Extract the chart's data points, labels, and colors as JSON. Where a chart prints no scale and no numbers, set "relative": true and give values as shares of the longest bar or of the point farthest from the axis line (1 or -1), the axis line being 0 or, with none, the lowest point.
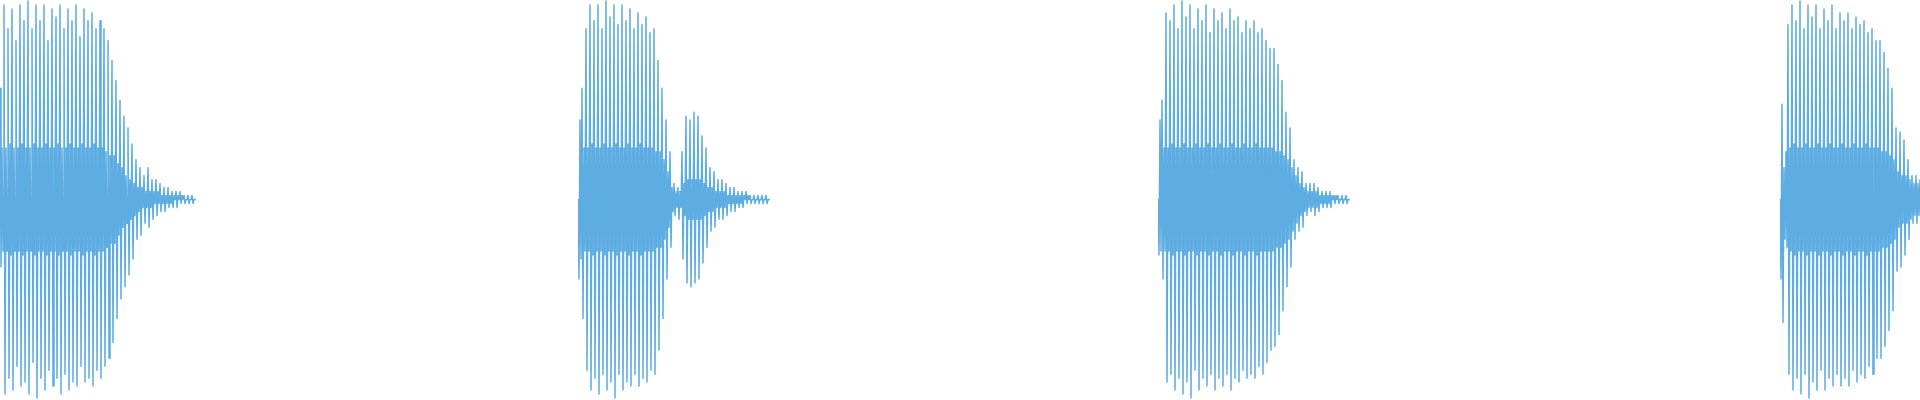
{
  "chart_data": [
    {
      "type": "line",
      "relative": true,
      "color": "#5dade2",
      "categories": [
        null,
        null,
        null,
        null,
        null,
        null,
        null,
        null,
        null,
        null,
        null,
        null,
        null,
        null,
        null,
        null,
        null,
        null,
        null,
        null,
        null,
        null,
        null,
        null,
        null,
        null,
        null,
        null,
        null,
        null,
        null,
        null,
        null,
        null,
        null,
        null,
        null,
        null,
        null,
        null,
        null,
        null,
        null,
        null,
        null,
        null,
        null,
        null,
        null,
        null,
        null,
        null,
        null,
        null,
        null,
        null,
        null,
        null,
        null,
        null,
        null,
        null,
        null,
        null,
        null,
        null,
        null,
        null,
        null,
        null,
        null,
        null,
        null,
        null,
        null,
        null,
        null,
        null,
        null,
        null,
        null,
        null,
        null,
        null,
        null,
        null,
        null,
        null,
        null,
        null,
        null,
        null,
        null,
        null,
        null,
        null,
        null,
        null,
        null,
        null,
        null,
        null,
        null,
        null,
        null,
        null,
        null,
        null,
        null,
        null,
        null,
        null,
        null,
        null,
        null,
        null,
        null,
        null,
        null,
        null,
        null,
        null,
        null,
        null,
        null,
        null,
        null,
        null,
        null,
        null,
        null,
        null,
        null,
        null,
        null,
        null,
        null,
        null,
        null,
        null,
        null,
        null,
        null,
        null,
        null,
        null,
        null,
        null,
        null,
        null,
        null,
        null,
        null,
        null,
        null,
        null,
        null,
        null,
        null,
        null,
        null,
        null,
        null,
        null,
        null,
        null,
        null,
        null,
        null,
        null,
        null,
        null,
        null,
        null,
        null,
        null,
        null,
        null,
        null,
        null,
        null,
        null,
        null,
        null,
        null,
        null,
        null,
        null,
        null,
        null,
        null,
        null,
        null,
        null,
        null,
        null,
        null
      ],
      "values": [
        0.78,
        0.33,
        0.63,
        0.37,
        0.99,
        0.01,
        0.63,
        0.37,
        0.93,
        0.05,
        0.64,
        0.36,
        0.98,
        0.02,
        0.63,
        0.37,
        0.9,
        0.08,
        0.63,
        0.37,
        0.99,
        0.03,
        0.64,
        0.36,
        0.95,
        0.04,
        0.63,
        0.37,
        1,
        0.01,
        0.63,
        0.37,
        0.93,
        0.09,
        0.64,
        0.36,
        0.99,
        0,
        0.63,
        0.37,
        0.95,
        0.05,
        0.63,
        0.37,
        0.99,
        0.02,
        0.64,
        0.36,
        0.9,
        0.07,
        0.63,
        0.37,
        0.98,
        0.03,
        0.63,
        0.37,
        0.96,
        0.05,
        0.64,
        0.36,
        0.99,
        0.01,
        0.63,
        0.37,
        0.93,
        0.06,
        0.63,
        0.37,
        0.98,
        0.02,
        0.64,
        0.36,
        0.95,
        0.04,
        0.63,
        0.37,
        0.99,
        0.03,
        0.63,
        0.37,
        0.91,
        0.08,
        0.64,
        0.36,
        0.98,
        0.04,
        0.63,
        0.37,
        0.95,
        0.05,
        0.63,
        0.37,
        0.97,
        0.03,
        0.64,
        0.36,
        0.93,
        0.07,
        0.63,
        0.37,
        0.95,
        0.05,
        0.63,
        0.37,
        0.93,
        0.08,
        0.62,
        0.38,
        0.9,
        0.1,
        0.61,
        0.39,
        0.85,
        0.14,
        0.61,
        0.39,
        0.8,
        0.2,
        0.59,
        0.41,
        0.75,
        0.25,
        0.58,
        0.43,
        0.71,
        0.28,
        0.56,
        0.44,
        0.68,
        0.31,
        0.55,
        0.45,
        0.64,
        0.35,
        0.54,
        0.46,
        0.6,
        0.4,
        0.53,
        0.47,
        0.58,
        0.41,
        0.53,
        0.48,
        0.56,
        0.44,
        0.52,
        0.48,
        0.58,
        0.43,
        0.52,
        0.48,
        0.55,
        0.45,
        0.52,
        0.49,
        0.55,
        0.46,
        0.52,
        0.49,
        0.54,
        0.47,
        0.51,
        0.49,
        0.53,
        0.47,
        0.51,
        0.49,
        0.53,
        0.48,
        0.51,
        0.49,
        0.52,
        0.48,
        0.51,
        0.5,
        0.52,
        0.48,
        0.51,
        0.5,
        0.52,
        0.49,
        0.51,
        0.5,
        0.51,
        0.49,
        0.5,
        0.5,
        0.51,
        0.49,
        0.5,
        0.5,
        0.51,
        0.49,
        0.5,
        0.5,
        0.5
      ]
    },
    {
      "type": "line",
      "relative": true,
      "color": "#5dade2",
      "categories": [
        null,
        null,
        null,
        null,
        null,
        null,
        null,
        null,
        null,
        null,
        null,
        null,
        null,
        null,
        null,
        null,
        null,
        null,
        null,
        null,
        null,
        null,
        null,
        null,
        null,
        null,
        null,
        null,
        null,
        null,
        null,
        null,
        null,
        null,
        null,
        null,
        null,
        null,
        null,
        null,
        null,
        null,
        null,
        null,
        null,
        null,
        null,
        null,
        null,
        null,
        null,
        null,
        null,
        null,
        null,
        null,
        null,
        null,
        null,
        null,
        null,
        null,
        null,
        null,
        null,
        null,
        null,
        null,
        null,
        null,
        null,
        null,
        null,
        null,
        null,
        null,
        null,
        null,
        null,
        null,
        null,
        null,
        null,
        null,
        null,
        null,
        null,
        null,
        null,
        null,
        null,
        null,
        null,
        null,
        null,
        null,
        null,
        null,
        null,
        null,
        null,
        null,
        null,
        null,
        null,
        null,
        null,
        null,
        null,
        null,
        null,
        null,
        null,
        null,
        null,
        null,
        null,
        null,
        null,
        null,
        null,
        null,
        null,
        null,
        null,
        null,
        null,
        null,
        null,
        null,
        null,
        null,
        null,
        null,
        null,
        null,
        null,
        null,
        null,
        null,
        null,
        null,
        null,
        null,
        null,
        null,
        null,
        null,
        null,
        null,
        null,
        null,
        null,
        null,
        null,
        null,
        null,
        null,
        null,
        null,
        null,
        null,
        null,
        null,
        null,
        null,
        null,
        null,
        null,
        null,
        null,
        null,
        null,
        null,
        null,
        null,
        null,
        null,
        null,
        null,
        null,
        null,
        null,
        null,
        null,
        null,
        null,
        null,
        null,
        null,
        null,
        null,
        null
      ],
      "values": [
        0.5,
        0.3,
        0.7,
        0.35,
        0.78,
        0.2,
        0.63,
        0.37,
        0.93,
        0.07,
        0.63,
        0.37,
        0.99,
        0.02,
        0.64,
        0.36,
        0.95,
        0.05,
        0.63,
        0.37,
        0.99,
        0.01,
        0.63,
        0.37,
        0.93,
        0.06,
        0.64,
        0.36,
        1,
        0.02,
        0.63,
        0.37,
        0.96,
        0.04,
        0.63,
        0.37,
        0.99,
        0,
        0.64,
        0.36,
        0.94,
        0.06,
        0.63,
        0.37,
        0.99,
        0.02,
        0.63,
        0.37,
        0.95,
        0.04,
        0.64,
        0.36,
        0.98,
        0.03,
        0.63,
        0.37,
        0.93,
        0.06,
        0.63,
        0.37,
        0.97,
        0.03,
        0.64,
        0.36,
        0.94,
        0.05,
        0.63,
        0.37,
        0.96,
        0.04,
        0.63,
        0.37,
        0.92,
        0.07,
        0.63,
        0.37,
        0.93,
        0.06,
        0.62,
        0.38,
        0.85,
        0.12,
        0.62,
        0.38,
        0.78,
        0.2,
        0.6,
        0.4,
        0.7,
        0.3,
        0.57,
        0.43,
        0.62,
        0.38,
        0.53,
        0.47,
        0.54,
        0.46,
        0.52,
        0.48,
        0.53,
        0.45,
        0.52,
        0.48,
        0.62,
        0.35,
        0.54,
        0.46,
        0.71,
        0.29,
        0.55,
        0.45,
        0.7,
        0.28,
        0.55,
        0.45,
        0.72,
        0.29,
        0.55,
        0.45,
        0.71,
        0.3,
        0.55,
        0.45,
        0.66,
        0.34,
        0.54,
        0.46,
        0.63,
        0.38,
        0.53,
        0.47,
        0.58,
        0.42,
        0.53,
        0.47,
        0.57,
        0.43,
        0.52,
        0.48,
        0.55,
        0.45,
        0.52,
        0.48,
        0.55,
        0.45,
        0.52,
        0.48,
        0.54,
        0.46,
        0.51,
        0.49,
        0.53,
        0.47,
        0.51,
        0.49,
        0.53,
        0.47,
        0.51,
        0.49,
        0.52,
        0.48,
        0.51,
        0.49,
        0.52,
        0.48,
        0.51,
        0.5,
        0.52,
        0.49,
        0.51,
        0.5,
        0.51,
        0.49,
        0.5,
        0.5,
        0.51,
        0.49,
        0.5,
        0.5,
        0.51,
        0.49,
        0.5,
        0.5,
        0.51,
        0.49,
        0.5,
        0.5,
        0.51,
        0.49,
        0.5,
        0.5,
        0.5
      ]
    },
    {
      "type": "line",
      "relative": true,
      "color": "#5dade2",
      "categories": [
        null,
        null,
        null,
        null,
        null,
        null,
        null,
        null,
        null,
        null,
        null,
        null,
        null,
        null,
        null,
        null,
        null,
        null,
        null,
        null,
        null,
        null,
        null,
        null,
        null,
        null,
        null,
        null,
        null,
        null,
        null,
        null,
        null,
        null,
        null,
        null,
        null,
        null,
        null,
        null,
        null,
        null,
        null,
        null,
        null,
        null,
        null,
        null,
        null,
        null,
        null,
        null,
        null,
        null,
        null,
        null,
        null,
        null,
        null,
        null,
        null,
        null,
        null,
        null,
        null,
        null,
        null,
        null,
        null,
        null,
        null,
        null,
        null,
        null,
        null,
        null,
        null,
        null,
        null,
        null,
        null,
        null,
        null,
        null,
        null,
        null,
        null,
        null,
        null,
        null,
        null,
        null,
        null,
        null,
        null,
        null,
        null,
        null,
        null,
        null,
        null,
        null,
        null,
        null,
        null,
        null,
        null,
        null,
        null,
        null,
        null,
        null,
        null,
        null,
        null,
        null,
        null,
        null,
        null,
        null,
        null,
        null,
        null,
        null,
        null,
        null,
        null,
        null,
        null,
        null,
        null,
        null,
        null,
        null,
        null,
        null,
        null,
        null,
        null,
        null,
        null,
        null,
        null,
        null,
        null,
        null,
        null,
        null,
        null,
        null,
        null,
        null,
        null,
        null,
        null,
        null,
        null,
        null,
        null,
        null,
        null,
        null,
        null,
        null,
        null,
        null,
        null,
        null,
        null,
        null,
        null,
        null,
        null,
        null,
        null,
        null,
        null,
        null,
        null,
        null,
        null,
        null,
        null,
        null,
        null,
        null,
        null,
        null,
        null,
        null,
        null,
        null,
        null
      ],
      "values": [
        0.5,
        0.36,
        0.7,
        0.37,
        0.75,
        0.3,
        0.63,
        0.37,
        0.97,
        0.04,
        0.63,
        0.37,
        0.95,
        0.06,
        0.64,
        0.36,
        0.99,
        0.02,
        0.63,
        0.37,
        0.93,
        0.05,
        0.63,
        0.37,
        1,
        0.01,
        0.64,
        0.36,
        0.96,
        0.04,
        0.63,
        0.37,
        0.99,
        0,
        0.63,
        0.37,
        0.93,
        0.07,
        0.64,
        0.36,
        0.98,
        0.02,
        0.63,
        0.37,
        0.95,
        0.05,
        0.63,
        0.37,
        0.99,
        0.03,
        0.64,
        0.36,
        0.92,
        0.06,
        0.63,
        0.37,
        0.98,
        0.02,
        0.63,
        0.37,
        0.95,
        0.05,
        0.64,
        0.36,
        0.97,
        0.03,
        0.63,
        0.37,
        0.93,
        0.06,
        0.63,
        0.37,
        0.98,
        0.02,
        0.64,
        0.36,
        0.95,
        0.05,
        0.63,
        0.37,
        0.96,
        0.04,
        0.63,
        0.37,
        0.92,
        0.07,
        0.64,
        0.36,
        0.95,
        0.05,
        0.63,
        0.37,
        0.93,
        0.06,
        0.63,
        0.37,
        0.95,
        0.05,
        0.64,
        0.36,
        0.92,
        0.08,
        0.63,
        0.37,
        0.93,
        0.06,
        0.63,
        0.37,
        0.9,
        0.09,
        0.63,
        0.37,
        0.88,
        0.12,
        0.63,
        0.37,
        0.88,
        0.13,
        0.62,
        0.38,
        0.84,
        0.16,
        0.62,
        0.38,
        0.8,
        0.22,
        0.61,
        0.39,
        0.72,
        0.28,
        0.6,
        0.4,
        0.68,
        0.33,
        0.58,
        0.42,
        0.6,
        0.4,
        0.56,
        0.44,
        0.58,
        0.42,
        0.54,
        0.46,
        0.57,
        0.43,
        0.53,
        0.47,
        0.54,
        0.46,
        0.52,
        0.48,
        0.54,
        0.47,
        0.52,
        0.48,
        0.54,
        0.46,
        0.52,
        0.48,
        0.53,
        0.47,
        0.51,
        0.49,
        0.52,
        0.48,
        0.51,
        0.49,
        0.52,
        0.48,
        0.51,
        0.49,
        0.52,
        0.48,
        0.51,
        0.5,
        0.51,
        0.49,
        0.51,
        0.5,
        0.51,
        0.49,
        0.5,
        0.5,
        0.51,
        0.49,
        0.5,
        0.5,
        0.51,
        0.49,
        0.5,
        0.5,
        0.5
      ]
    },
    {
      "type": "line",
      "relative": true,
      "color": "#5dade2",
      "categories": [
        null,
        null,
        null,
        null,
        null,
        null,
        null,
        null,
        null,
        null,
        null,
        null,
        null,
        null,
        null,
        null,
        null,
        null,
        null,
        null,
        null,
        null,
        null,
        null,
        null,
        null,
        null,
        null,
        null,
        null,
        null,
        null,
        null,
        null,
        null,
        null,
        null,
        null,
        null,
        null,
        null,
        null,
        null,
        null,
        null,
        null,
        null,
        null,
        null,
        null,
        null,
        null,
        null,
        null,
        null,
        null,
        null,
        null,
        null,
        null,
        null,
        null,
        null,
        null,
        null,
        null,
        null,
        null,
        null,
        null,
        null,
        null,
        null,
        null,
        null,
        null,
        null,
        null,
        null,
        null,
        null,
        null,
        null,
        null,
        null,
        null,
        null,
        null,
        null,
        null,
        null,
        null,
        null,
        null,
        null,
        null,
        null,
        null,
        null,
        null,
        null,
        null,
        null,
        null,
        null,
        null,
        null,
        null,
        null,
        null,
        null,
        null,
        null,
        null,
        null,
        null,
        null,
        null,
        null,
        null,
        null,
        null,
        null,
        null,
        null,
        null,
        null,
        null,
        null,
        null,
        null,
        null,
        null,
        null,
        null,
        null,
        null,
        null,
        null,
        null,
        null
      ],
      "values": [
        0.5,
        0.3,
        0.74,
        0.19,
        0.58,
        0.4,
        0.62,
        0.38,
        0.94,
        0.06,
        0.63,
        0.37,
        0.99,
        0.02,
        0.64,
        0.36,
        0.95,
        0.05,
        0.63,
        0.37,
        1,
        0.01,
        0.63,
        0.37,
        0.93,
        0.06,
        0.64,
        0.36,
        0.99,
        0,
        0.63,
        0.37,
        0.96,
        0.04,
        0.63,
        0.37,
        0.99,
        0.02,
        0.64,
        0.36,
        0.93,
        0.07,
        0.63,
        0.37,
        0.98,
        0.02,
        0.63,
        0.37,
        0.95,
        0.05,
        0.64,
        0.36,
        0.99,
        0.03,
        0.63,
        0.37,
        0.93,
        0.06,
        0.63,
        0.37,
        0.97,
        0.03,
        0.64,
        0.36,
        0.95,
        0.05,
        0.63,
        0.37,
        0.97,
        0.03,
        0.63,
        0.37,
        0.93,
        0.07,
        0.64,
        0.36,
        0.96,
        0.04,
        0.63,
        0.37,
        0.94,
        0.06,
        0.63,
        0.37,
        0.95,
        0.05,
        0.64,
        0.36,
        0.92,
        0.08,
        0.63,
        0.37,
        0.93,
        0.06,
        0.63,
        0.37,
        0.9,
        0.1,
        0.63,
        0.37,
        0.9,
        0.1,
        0.62,
        0.38,
        0.87,
        0.13,
        0.62,
        0.38,
        0.83,
        0.17,
        0.61,
        0.39,
        0.78,
        0.22,
        0.6,
        0.4,
        0.68,
        0.32,
        0.57,
        0.43,
        0.67,
        0.33,
        0.56,
        0.44,
        0.65,
        0.36,
        0.56,
        0.44,
        0.6,
        0.4,
        0.55,
        0.45,
        0.56,
        0.44,
        0.54,
        0.46,
        0.56,
        0.44,
        0.54,
        0.46,
        0.55
      ]
    }
  ]
}
